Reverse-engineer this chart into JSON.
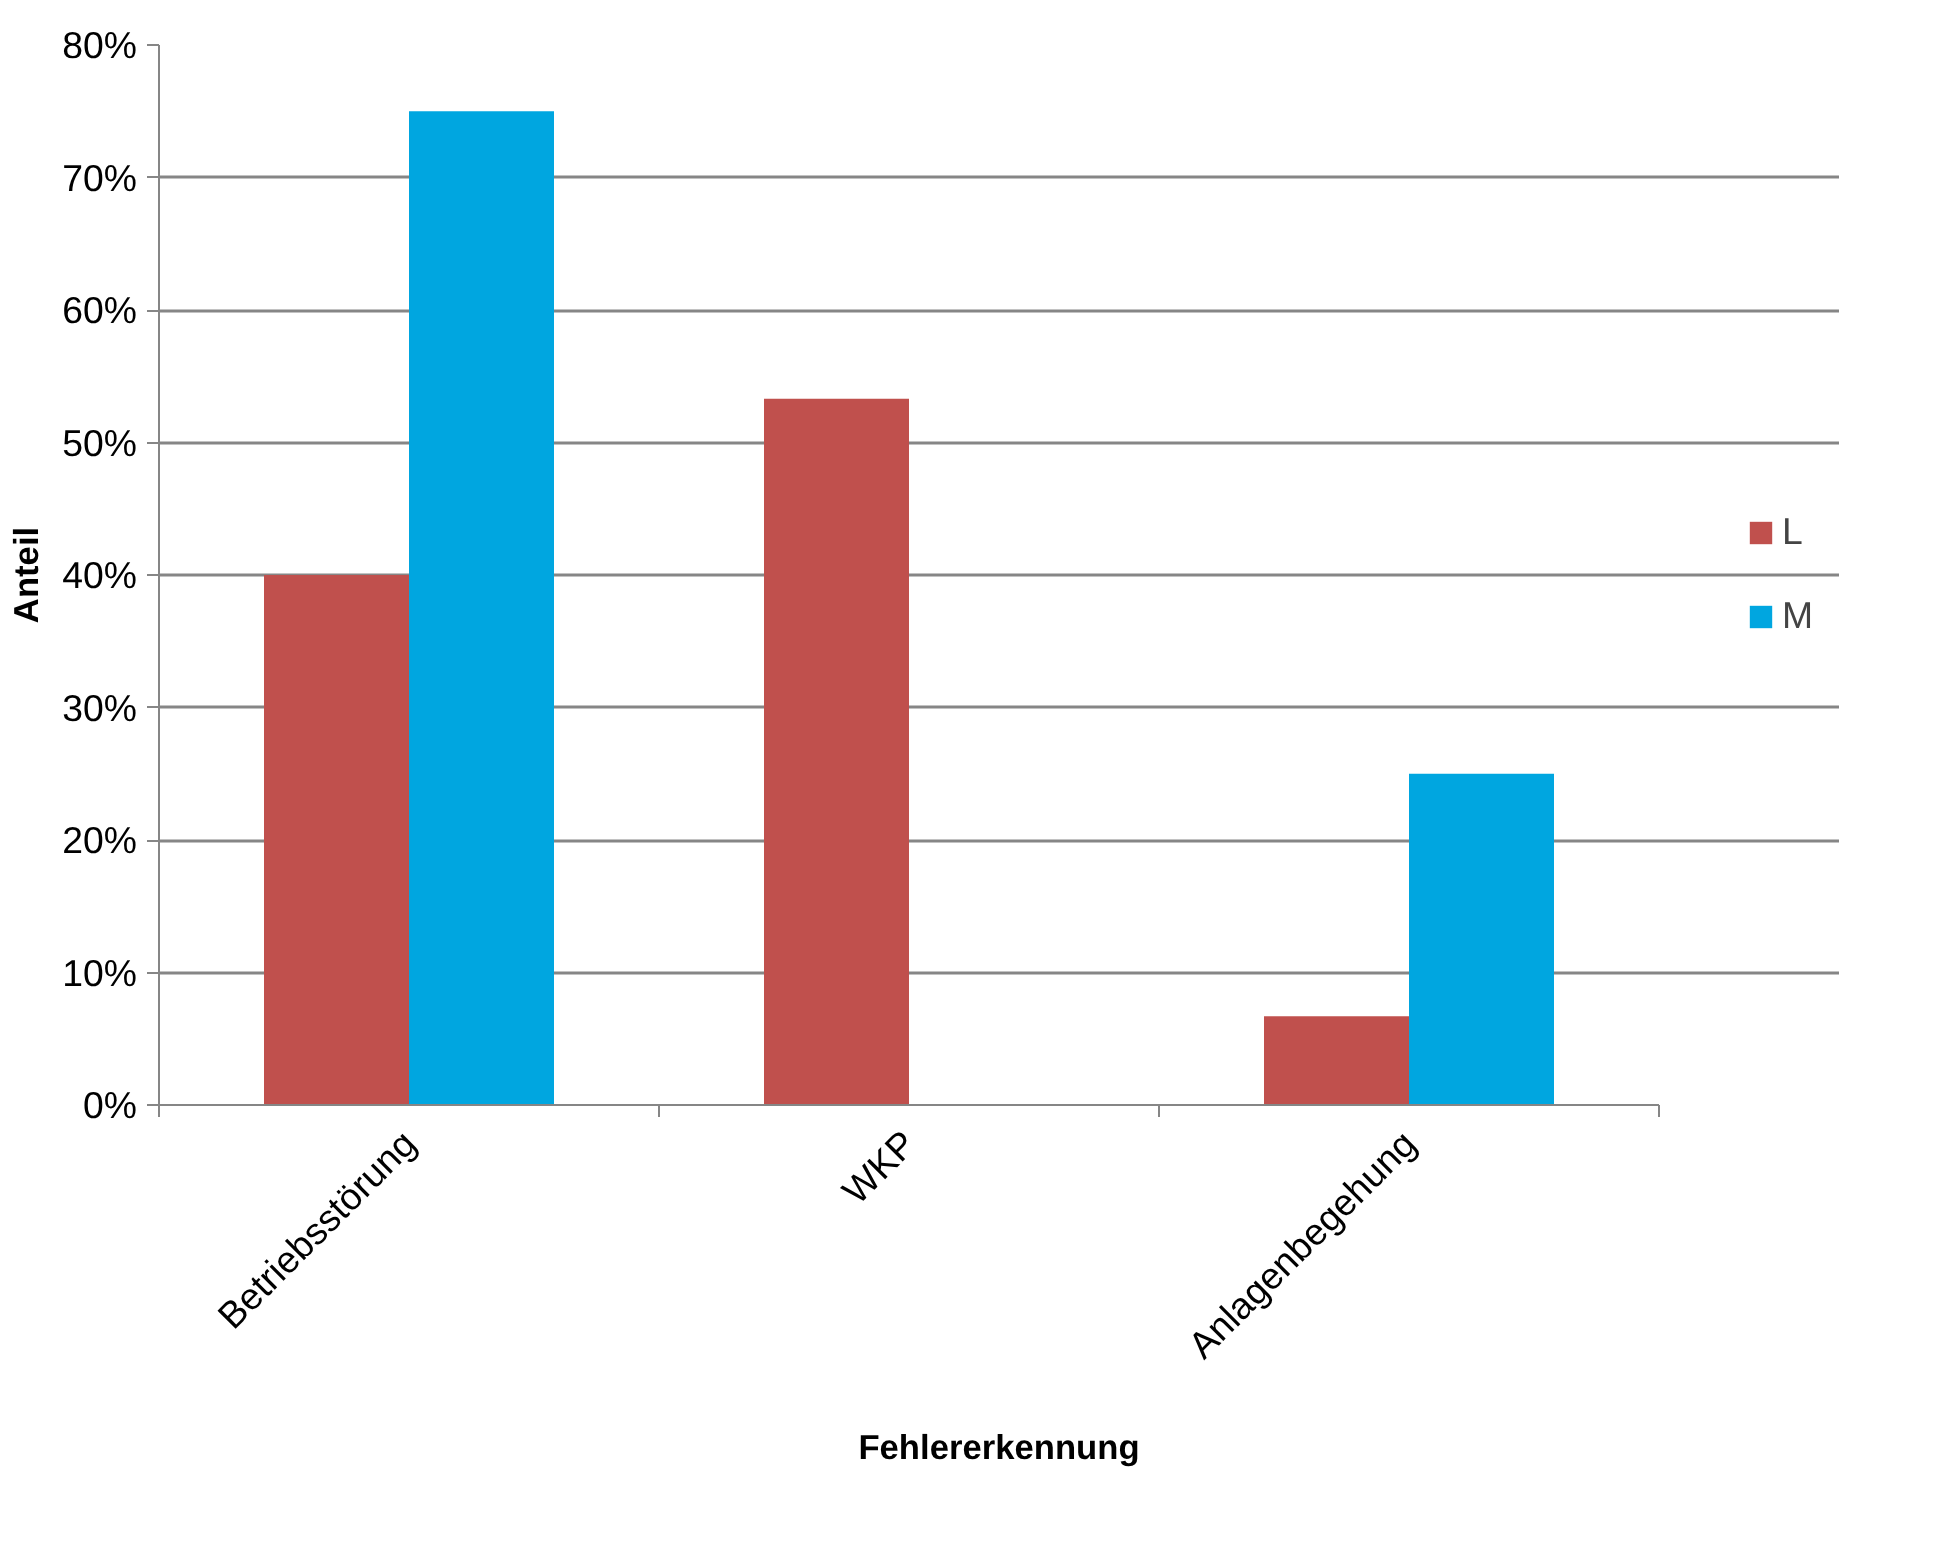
{
  "chart_data": {
    "type": "bar",
    "xlabel": "Fehlererkennung",
    "ylabel": "Anteil",
    "categories": [
      "Betriebsstörung",
      "WKP",
      "Anlagenbegehung"
    ],
    "series": [
      {
        "name": "L",
        "color": "#c0504d",
        "values": [
          40,
          53.3,
          6.7
        ]
      },
      {
        "name": "M",
        "color": "#00a6e0",
        "values": [
          75,
          null,
          25
        ]
      }
    ],
    "ylim": [
      0,
      80
    ],
    "yticks": [
      {
        "value": 0,
        "label": "0%"
      },
      {
        "value": 10,
        "label": "10%"
      },
      {
        "value": 20,
        "label": "20%"
      },
      {
        "value": 30,
        "label": "30%"
      },
      {
        "value": 40,
        "label": "40%"
      },
      {
        "value": 50,
        "label": "50%"
      },
      {
        "value": 60,
        "label": "60%"
      },
      {
        "value": 70,
        "label": "70%"
      },
      {
        "value": 80,
        "label": "80%"
      }
    ],
    "grid": "y",
    "legend": "right"
  }
}
